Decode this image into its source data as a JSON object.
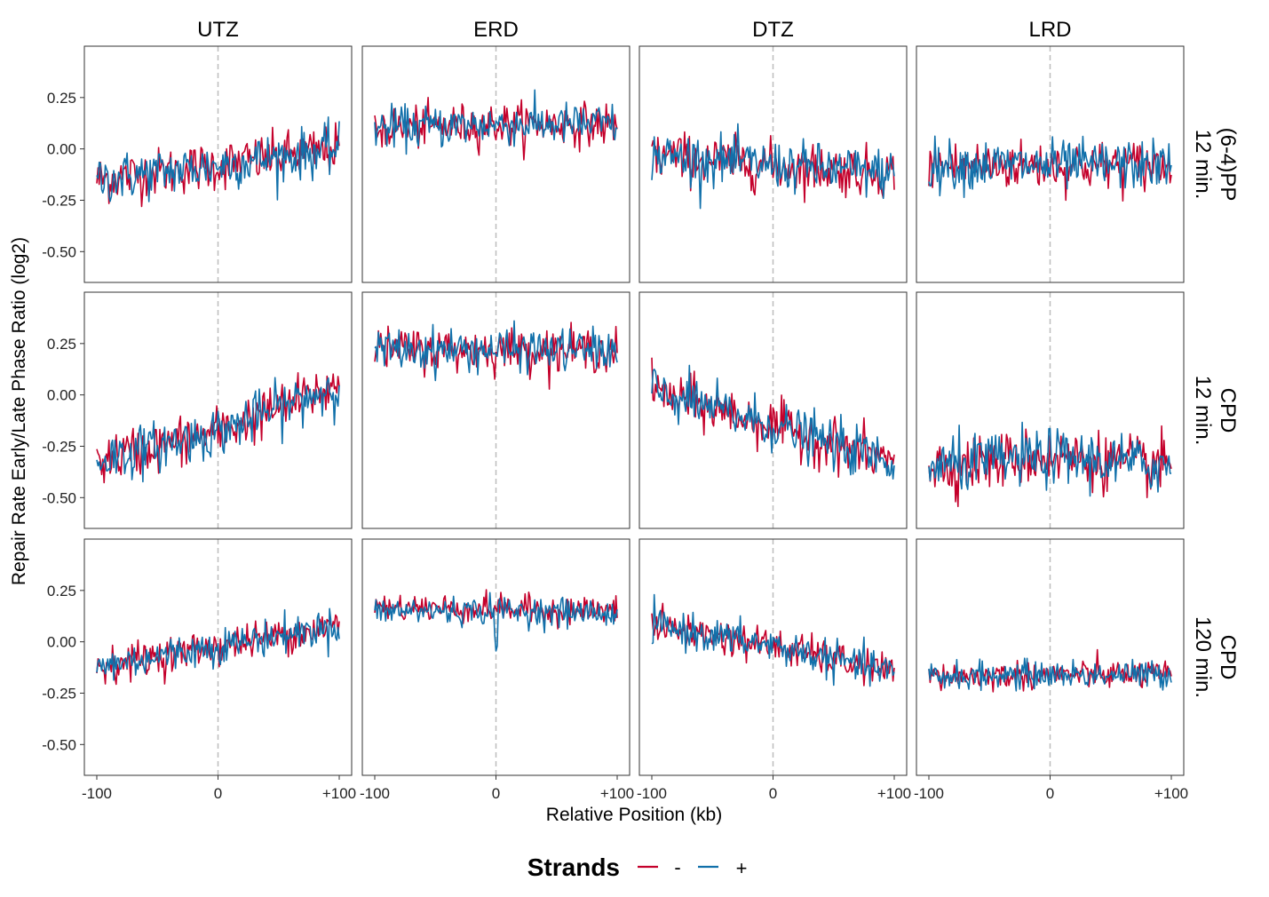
{
  "chart_data": {
    "type": "line",
    "xlabel": "Relative Position (kb)",
    "ylabel": "Repair Rate Early/Late Phase Ratio (log2)",
    "xlim": [
      -100,
      100
    ],
    "ylim": [
      -0.65,
      0.5
    ],
    "x_ticks": [
      -100,
      0,
      100
    ],
    "x_tick_labels": [
      "-100",
      "0",
      "+100"
    ],
    "y_ticks": [
      -0.5,
      -0.25,
      0,
      0.25
    ],
    "y_tick_labels": [
      "-0.50",
      "-0.25",
      "0.00",
      "0.25"
    ],
    "reference_line_x": 0,
    "grid": false,
    "legend": {
      "title": "Strands",
      "position": "bottom",
      "entries": [
        {
          "label": "-",
          "color": "#C4002B"
        },
        {
          "label": "+",
          "color": "#1170AA"
        }
      ]
    },
    "columns": [
      "UTZ",
      "ERD",
      "DTZ",
      "LRD"
    ],
    "rows": [
      {
        "line1": "(6-4)PP",
        "line2": "12 min."
      },
      {
        "line1": "CPD",
        "line2": "12 min."
      },
      {
        "line1": "CPD",
        "line2": "120 min."
      }
    ],
    "panels": [
      {
        "row": 0,
        "col": 0,
        "series": [
          {
            "name": "-",
            "x": [
              -100,
              0,
              100
            ],
            "y": [
              -0.15,
              -0.08,
              0.0
            ],
            "noise": 0.07
          },
          {
            "name": "+",
            "x": [
              -100,
              0,
              100
            ],
            "y": [
              -0.15,
              -0.08,
              0.0
            ],
            "noise": 0.07
          }
        ]
      },
      {
        "row": 0,
        "col": 1,
        "series": [
          {
            "name": "-",
            "x": [
              -100,
              0,
              100
            ],
            "y": [
              0.1,
              0.12,
              0.12
            ],
            "noise": 0.06
          },
          {
            "name": "+",
            "x": [
              -100,
              0,
              100
            ],
            "y": [
              0.1,
              0.12,
              0.12
            ],
            "noise": 0.06
          }
        ]
      },
      {
        "row": 0,
        "col": 2,
        "series": [
          {
            "name": "-",
            "x": [
              -100,
              0,
              100
            ],
            "y": [
              -0.03,
              -0.08,
              -0.12
            ],
            "noise": 0.07
          },
          {
            "name": "+",
            "x": [
              -100,
              0,
              100
            ],
            "y": [
              -0.03,
              -0.08,
              -0.12
            ],
            "noise": 0.07
          }
        ]
      },
      {
        "row": 0,
        "col": 3,
        "series": [
          {
            "name": "-",
            "x": [
              -100,
              0,
              100
            ],
            "y": [
              -0.08,
              -0.08,
              -0.08
            ],
            "noise": 0.07
          },
          {
            "name": "+",
            "x": [
              -100,
              0,
              100
            ],
            "y": [
              -0.08,
              -0.08,
              -0.08
            ],
            "noise": 0.07
          }
        ]
      },
      {
        "row": 1,
        "col": 0,
        "series": [
          {
            "name": "-",
            "x": [
              -100,
              0,
              100
            ],
            "y": [
              -0.32,
              -0.18,
              0.05
            ],
            "noise": 0.07
          },
          {
            "name": "+",
            "x": [
              -100,
              0,
              100
            ],
            "y": [
              -0.32,
              -0.18,
              0.05
            ],
            "noise": 0.07
          }
        ]
      },
      {
        "row": 1,
        "col": 1,
        "series": [
          {
            "name": "-",
            "x": [
              -100,
              0,
              100
            ],
            "y": [
              0.22,
              0.22,
              0.22
            ],
            "noise": 0.06
          },
          {
            "name": "+",
            "x": [
              -100,
              0,
              100
            ],
            "y": [
              0.22,
              0.22,
              0.22
            ],
            "noise": 0.06
          }
        ]
      },
      {
        "row": 1,
        "col": 2,
        "series": [
          {
            "name": "-",
            "x": [
              -100,
              0,
              100
            ],
            "y": [
              0.02,
              -0.15,
              -0.33
            ],
            "noise": 0.07
          },
          {
            "name": "+",
            "x": [
              -100,
              0,
              100
            ],
            "y": [
              0.02,
              -0.15,
              -0.33
            ],
            "noise": 0.07
          }
        ]
      },
      {
        "row": 1,
        "col": 3,
        "series": [
          {
            "name": "-",
            "x": [
              -100,
              0,
              100
            ],
            "y": [
              -0.35,
              -0.3,
              -0.35
            ],
            "noise": 0.08
          },
          {
            "name": "+",
            "x": [
              -100,
              0,
              100
            ],
            "y": [
              -0.35,
              -0.3,
              -0.35
            ],
            "noise": 0.08
          }
        ]
      },
      {
        "row": 2,
        "col": 0,
        "series": [
          {
            "name": "-",
            "x": [
              -100,
              0,
              100
            ],
            "y": [
              -0.12,
              -0.02,
              0.08
            ],
            "noise": 0.05
          },
          {
            "name": "+",
            "x": [
              -100,
              0,
              100
            ],
            "y": [
              -0.12,
              -0.02,
              0.08
            ],
            "noise": 0.05
          }
        ]
      },
      {
        "row": 2,
        "col": 1,
        "series": [
          {
            "name": "-",
            "x": [
              -100,
              0,
              100
            ],
            "y": [
              0.17,
              0.16,
              0.15
            ],
            "noise": 0.04
          },
          {
            "name": "+",
            "x": [
              -100,
              -2,
              0,
              2,
              100
            ],
            "y": [
              0.15,
              0.15,
              -0.05,
              0.15,
              0.14
            ],
            "noise": 0.04
          }
        ]
      },
      {
        "row": 2,
        "col": 2,
        "series": [
          {
            "name": "-",
            "x": [
              -100,
              0,
              100
            ],
            "y": [
              0.08,
              -0.02,
              -0.15
            ],
            "noise": 0.05
          },
          {
            "name": "+",
            "x": [
              -100,
              0,
              100
            ],
            "y": [
              0.08,
              -0.02,
              -0.15
            ],
            "noise": 0.05
          }
        ]
      },
      {
        "row": 2,
        "col": 3,
        "series": [
          {
            "name": "-",
            "x": [
              -100,
              0,
              100
            ],
            "y": [
              -0.17,
              -0.16,
              -0.16
            ],
            "noise": 0.04
          },
          {
            "name": "+",
            "x": [
              -100,
              0,
              100
            ],
            "y": [
              -0.17,
              -0.16,
              -0.16
            ],
            "noise": 0.04
          }
        ]
      }
    ]
  }
}
